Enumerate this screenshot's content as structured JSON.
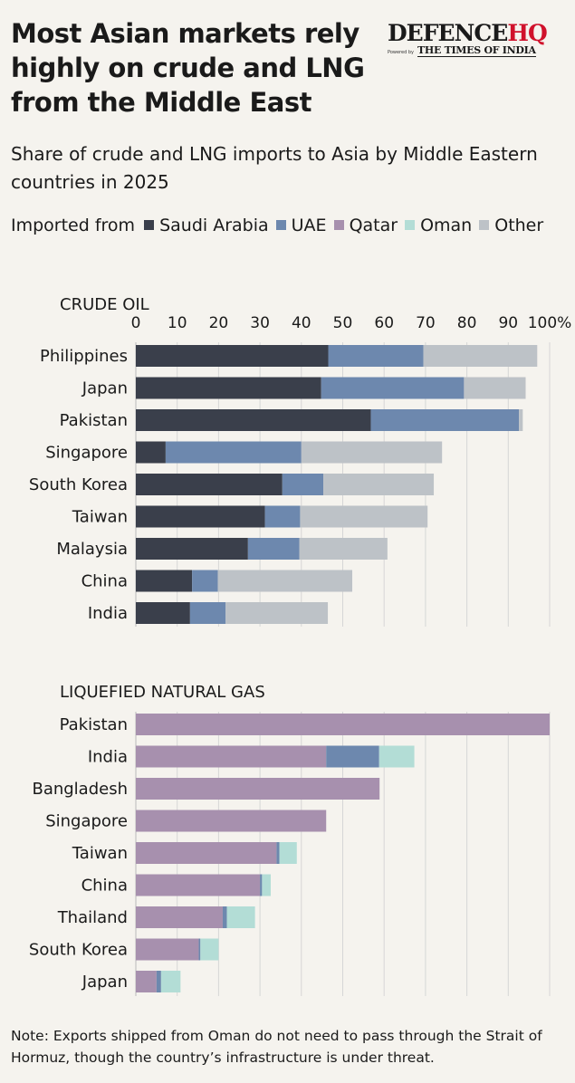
{
  "title": "Most Asian markets rely highly on crude and LNG from the Middle East",
  "logo": {
    "brand_main": "DEFENCE",
    "brand_accent": "HQ",
    "powered_by": "Powered by",
    "partner": "THE TIMES OF INDIA"
  },
  "subtitle": "Share of crude and LNG imports to Asia by Middle Eastern countries in 2025",
  "legend_label": "Imported from",
  "note": "Note: Exports shipped from Oman do not need to pass through the Strait of Hormuz, though the country’s infrastructure is under threat.",
  "colors": {
    "Saudi Arabia": "#3a3f4b",
    "UAE": "#6d88ae",
    "Qatar": "#a790ae",
    "Oman": "#b3ddd6",
    "Other": "#bdc2c7"
  },
  "chart_data": [
    {
      "type": "bar",
      "orientation": "horizontal",
      "stacked": true,
      "title": "CRUDE OIL",
      "x_ticks": [
        "0",
        "10",
        "20",
        "30",
        "40",
        "50",
        "60",
        "70",
        "80",
        "90",
        "100%"
      ],
      "xlim": [
        0,
        100
      ],
      "grid": true,
      "legend_position": "top-left",
      "categories": [
        "Philippines",
        "Japan",
        "Pakistan",
        "Singapore",
        "South Korea",
        "Taiwan",
        "Malaysia",
        "China",
        "India"
      ],
      "series": [
        {
          "name": "Saudi Arabia",
          "values": [
            46.5,
            44.8,
            56.8,
            7.2,
            35.4,
            31.2,
            27.1,
            13.6,
            13.1
          ]
        },
        {
          "name": "UAE",
          "values": [
            23.0,
            34.5,
            35.8,
            32.8,
            9.9,
            8.5,
            12.4,
            6.2,
            8.6
          ]
        },
        {
          "name": "Oman",
          "values": [
            0,
            0,
            0,
            0,
            0,
            0,
            0,
            0,
            0
          ]
        },
        {
          "name": "Other",
          "values": [
            27.5,
            14.9,
            0.9,
            34.0,
            26.7,
            30.8,
            21.3,
            32.5,
            24.7
          ]
        }
      ]
    },
    {
      "type": "bar",
      "orientation": "horizontal",
      "stacked": true,
      "title": "LIQUEFIED NATURAL GAS",
      "xlim": [
        0,
        100
      ],
      "grid": true,
      "categories": [
        "Pakistan",
        "India",
        "Bangladesh",
        "Singapore",
        "Taiwan",
        "China",
        "Thailand",
        "South Korea",
        "Japan"
      ],
      "series": [
        {
          "name": "Qatar",
          "values": [
            100,
            46.0,
            58.9,
            46.0,
            34.0,
            30.0,
            21.0,
            15.2,
            5.0
          ]
        },
        {
          "name": "UAE",
          "values": [
            0,
            12.8,
            0,
            0,
            0.7,
            0.5,
            1.0,
            0.4,
            1.1
          ]
        },
        {
          "name": "Oman",
          "values": [
            0,
            8.5,
            0,
            0,
            4.2,
            2.1,
            6.8,
            4.4,
            4.7
          ]
        }
      ]
    }
  ]
}
